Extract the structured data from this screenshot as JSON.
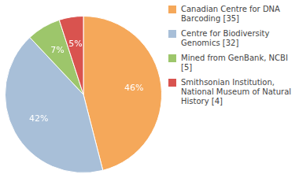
{
  "chart_data": {
    "type": "pie",
    "categories": [
      "Canadian Centre for DNA\nBarcoding [35]",
      "Centre for Biodiversity\nGenomics [32]",
      "Mined from GenBank, NCBI [5]",
      "Smithsonian Institution,\nNational Museum of Natural\nHistory [4]"
    ],
    "values": [
      46,
      42,
      7,
      5
    ],
    "value_labels": [
      "46%",
      "42%",
      "7%",
      "5%"
    ],
    "data_labels": true,
    "colors": [
      "#f5a85a",
      "#a8bfd8",
      "#9dc66b",
      "#d9534f"
    ],
    "legend": "upper right"
  }
}
